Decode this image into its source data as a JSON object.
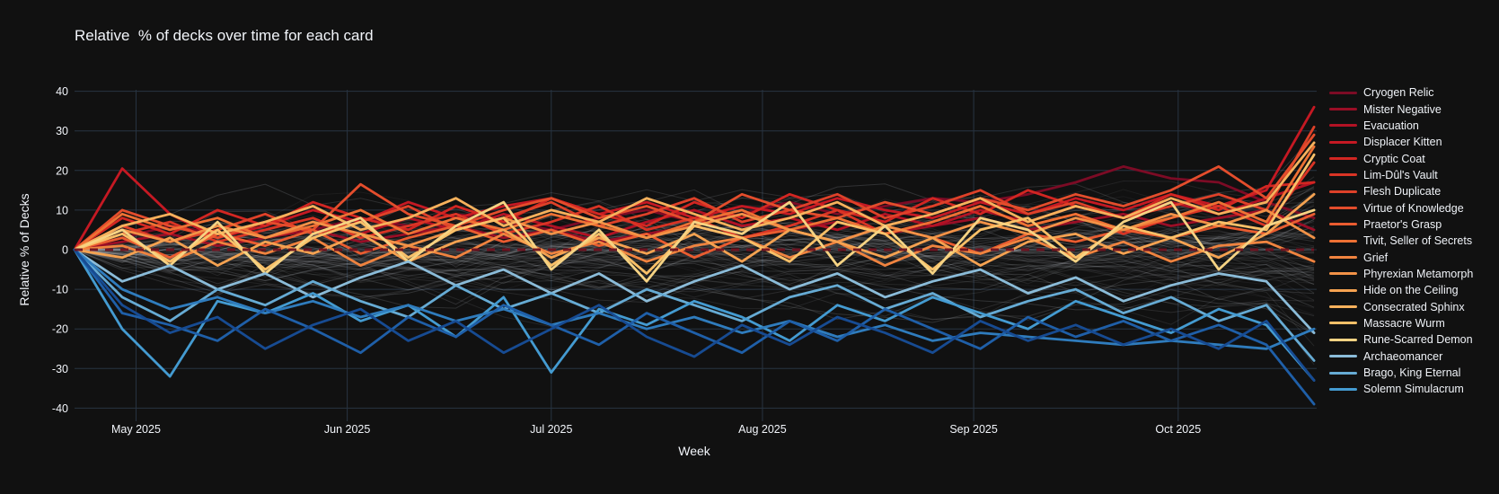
{
  "title": "Relative  % of decks over time for each card",
  "colors": {
    "background": "#111111",
    "grid": "#283442",
    "text": "#f2f5fa",
    "background_lines": "#c9ced6",
    "baseline_dash": "#6f1220"
  },
  "chart_data": {
    "type": "line",
    "title": "Relative  % of decks over time for each card",
    "xlabel": "Week",
    "ylabel": "Relative % of Decks",
    "ylim": [
      -40,
      40
    ],
    "y_ticks": [
      40,
      30,
      20,
      10,
      0,
      -10,
      -20,
      -30,
      -40
    ],
    "x_ticks": [
      {
        "label": "May 2025",
        "week_index": 1.29
      },
      {
        "label": "Jun 2025",
        "week_index": 5.72
      },
      {
        "label": "Jul 2025",
        "week_index": 10.0
      },
      {
        "label": "Aug 2025",
        "week_index": 14.43
      },
      {
        "label": "Sep 2025",
        "week_index": 18.86
      },
      {
        "label": "Oct 2025",
        "week_index": 23.15
      }
    ],
    "weeks_count": 27,
    "grid": true,
    "legend_position": "right",
    "baseline": {
      "value": 0,
      "style": "dashed",
      "color": "#6f1220"
    },
    "background_lines": {
      "count": 88,
      "color": "#c9ced6",
      "meaning": "unhighlighted cards"
    },
    "series": [
      {
        "name": "Cryogen Relic",
        "color": "#7c0b25",
        "in_legend": true,
        "values": [
          0,
          3,
          6,
          4,
          7,
          5,
          8,
          6,
          9,
          7,
          5,
          8,
          10,
          7,
          9,
          12,
          9,
          11,
          13,
          12,
          14,
          17,
          21,
          18,
          17,
          12,
          8
        ]
      },
      {
        "name": "Mister Negative",
        "color": "#9a0e26",
        "in_legend": true,
        "values": [
          0,
          2,
          4,
          1,
          3,
          5,
          2,
          4,
          6,
          3,
          5,
          2,
          4,
          6,
          3,
          5,
          7,
          4,
          6,
          8,
          5,
          7,
          9,
          6,
          8,
          10,
          5
        ]
      },
      {
        "name": "Evacuation",
        "color": "#b21224",
        "in_legend": true,
        "values": [
          0,
          5,
          2,
          6,
          3,
          7,
          4,
          8,
          5,
          9,
          6,
          3,
          7,
          10,
          6,
          8,
          5,
          9,
          6,
          10,
          7,
          11,
          8,
          12,
          9,
          13,
          17
        ]
      },
      {
        "name": "Displacer Kitten",
        "color": "#c51923",
        "in_legend": true,
        "values": [
          0,
          20.5,
          9,
          3,
          6,
          10,
          7,
          12,
          8,
          11,
          13,
          9,
          12,
          8,
          11,
          9,
          13,
          10,
          8,
          12,
          9,
          13,
          10,
          14,
          11,
          15,
          36
        ]
      },
      {
        "name": "Cryptic Coat",
        "color": "#d22622",
        "in_legend": true,
        "values": [
          0,
          8,
          4,
          10,
          6,
          12,
          8,
          5,
          11,
          7,
          13,
          9,
          6,
          12,
          8,
          14,
          10,
          7,
          13,
          9,
          15,
          11,
          8,
          14,
          10,
          16,
          17
        ]
      },
      {
        "name": "Lim-Dûl's Vault",
        "color": "#d93425",
        "in_legend": true,
        "values": [
          0,
          4,
          7,
          2,
          5,
          8,
          3,
          6,
          9,
          4,
          7,
          11,
          5,
          8,
          3,
          6,
          10,
          4,
          7,
          11,
          6,
          9,
          4,
          8,
          11,
          6,
          22
        ]
      },
      {
        "name": "Flesh Duplicate",
        "color": "#de4129",
        "in_legend": true,
        "values": [
          0,
          6,
          2,
          5,
          9,
          4,
          7,
          11,
          5,
          8,
          12,
          6,
          9,
          13,
          7,
          10,
          14,
          8,
          11,
          15,
          9,
          12,
          8,
          11,
          14,
          10,
          31
        ]
      },
      {
        "name": "Virtue of Knowledge",
        "color": "#e44d2c",
        "in_legend": true,
        "values": [
          0,
          10,
          6,
          3,
          7,
          5,
          16.5,
          9,
          6,
          10,
          13,
          8,
          11,
          7,
          14,
          10,
          8,
          12,
          9,
          13,
          10,
          14,
          11,
          15,
          21,
          13,
          29
        ]
      },
      {
        "name": "Praetor's Grasp",
        "color": "#ea5c30",
        "in_legend": true,
        "values": [
          0,
          3,
          -2,
          4,
          1,
          5,
          -1,
          3,
          6,
          2,
          5,
          1,
          4,
          -2,
          3,
          5,
          2,
          6,
          3,
          -1,
          4,
          2,
          5,
          3,
          6,
          4,
          9
        ]
      },
      {
        "name": "Tivit, Seller of Secrets",
        "color": "#ee7134",
        "in_legend": true,
        "values": [
          0,
          9,
          5,
          8,
          3,
          6,
          10,
          4,
          8,
          5,
          9,
          6,
          3,
          7,
          10,
          5,
          8,
          4,
          7,
          11,
          6,
          9,
          5,
          8,
          12,
          7,
          26
        ]
      },
      {
        "name": "Grief",
        "color": "#f0833f",
        "in_legend": true,
        "values": [
          0,
          1,
          -3,
          2,
          -1,
          3,
          -4,
          1,
          -2,
          4,
          -1,
          2,
          -3,
          1,
          3,
          -2,
          2,
          -4,
          1,
          -1,
          3,
          -2,
          2,
          -3,
          1,
          2,
          -3
        ]
      },
      {
        "name": "Phyrexian Metamorph",
        "color": "#f29247",
        "in_legend": true,
        "values": [
          0,
          5,
          2,
          6,
          3,
          7,
          4,
          1,
          5,
          8,
          4,
          7,
          3,
          6,
          9,
          5,
          2,
          6,
          3,
          7,
          4,
          8,
          5,
          9,
          6,
          10,
          3
        ]
      },
      {
        "name": "Hide on the Ceiling",
        "color": "#f5a251",
        "in_legend": true,
        "values": [
          0,
          -2,
          3,
          -4,
          2,
          -1,
          4,
          -3,
          2,
          5,
          -2,
          3,
          -1,
          4,
          -3,
          5,
          2,
          -2,
          3,
          -4,
          2,
          4,
          -1,
          3,
          -2,
          4,
          14
        ]
      },
      {
        "name": "Consecrated Sphinx",
        "color": "#f7b15c",
        "in_legend": true,
        "values": [
          0,
          6,
          9,
          4,
          7,
          11,
          5,
          8,
          13,
          6,
          10,
          7,
          13,
          9,
          5,
          8,
          12,
          6,
          9,
          13,
          7,
          11,
          8,
          13,
          9,
          12,
          27
        ]
      },
      {
        "name": "Massacre Wurm",
        "color": "#f9c068",
        "in_legend": true,
        "values": [
          0,
          4,
          -3,
          5,
          -5,
          3,
          7,
          -2,
          5,
          8,
          -4,
          4,
          -6,
          6,
          3,
          -3,
          7,
          4,
          -5,
          5,
          8,
          -2,
          6,
          3,
          7,
          5,
          24
        ]
      },
      {
        "name": "Rune-Scarred Demon",
        "color": "#f6d383",
        "in_legend": true,
        "values": [
          0,
          5,
          -4,
          7,
          -6,
          4,
          8,
          -3,
          6,
          12,
          -5,
          5,
          -8,
          7,
          4,
          12,
          -4,
          6,
          -6,
          8,
          5,
          -3,
          7,
          12,
          -5,
          6,
          10
        ]
      },
      {
        "name": "Archaeomancer",
        "color": "#8bbcd9",
        "in_legend": true,
        "values": [
          0,
          -8,
          -4,
          -10,
          -6,
          -12,
          -7,
          -3,
          -9,
          -5,
          -11,
          -6,
          -13,
          -8,
          -4,
          -10,
          -6,
          -12,
          -8,
          -5,
          -11,
          -7,
          -13,
          -9,
          -6,
          -8,
          -21
        ]
      },
      {
        "name": "Brago, King Eternal",
        "color": "#66abd4",
        "in_legend": true,
        "values": [
          0,
          -12,
          -18,
          -10,
          -14,
          -8,
          -13,
          -17,
          -9,
          -15,
          -11,
          -16,
          -10,
          -14,
          -18,
          -12,
          -9,
          -15,
          -11,
          -17,
          -13,
          -10,
          -16,
          -12,
          -18,
          -14,
          -28
        ]
      },
      {
        "name": "Solemn Simulacrum",
        "color": "#449bd1",
        "in_legend": true,
        "values": [
          0,
          -20,
          -32,
          -13,
          -16,
          -11,
          -18,
          -14,
          -22,
          -12,
          -31,
          -15,
          -19,
          -13,
          -17,
          -23,
          -14,
          -18,
          -12,
          -16,
          -20,
          -13,
          -17,
          -21,
          -15,
          -19,
          -33
        ]
      },
      {
        "name": "",
        "color": "#2f7cbd",
        "in_legend": false,
        "values": [
          0,
          -10,
          -15,
          -12,
          -16,
          -13,
          -17,
          -14,
          -18,
          -15,
          -19,
          -16,
          -20,
          -17,
          -21,
          -18,
          -22,
          -19,
          -23,
          -21,
          -22,
          -23,
          -24,
          -23,
          -24,
          -25,
          -20
        ]
      },
      {
        "name": "",
        "color": "#1f5fa8",
        "in_legend": false,
        "values": [
          0,
          -16,
          -19,
          -23,
          -15,
          -20,
          -26,
          -17,
          -22,
          -14,
          -19,
          -24,
          -16,
          -21,
          -26,
          -18,
          -23,
          -15,
          -20,
          -25,
          -17,
          -22,
          -18,
          -23,
          -19,
          -24,
          -39
        ]
      },
      {
        "name": "",
        "color": "#174b92",
        "in_legend": false,
        "values": [
          0,
          -14,
          -21,
          -17,
          -25,
          -19,
          -15,
          -23,
          -18,
          -26,
          -20,
          -14,
          -22,
          -27,
          -19,
          -24,
          -17,
          -21,
          -26,
          -18,
          -23,
          -19,
          -24,
          -20,
          -25,
          -18,
          -33
        ]
      }
    ]
  },
  "legend": {
    "items": [
      {
        "label": "Cryogen Relic",
        "color": "#7c0b25"
      },
      {
        "label": "Mister Negative",
        "color": "#9a0e26"
      },
      {
        "label": "Evacuation",
        "color": "#b21224"
      },
      {
        "label": "Displacer Kitten",
        "color": "#c51923"
      },
      {
        "label": "Cryptic Coat",
        "color": "#d22622"
      },
      {
        "label": "Lim-Dûl's Vault",
        "color": "#d93425"
      },
      {
        "label": "Flesh Duplicate",
        "color": "#de4129"
      },
      {
        "label": "Virtue of Knowledge",
        "color": "#e44d2c"
      },
      {
        "label": "Praetor's Grasp",
        "color": "#ea5c30"
      },
      {
        "label": "Tivit, Seller of Secrets",
        "color": "#ee7134"
      },
      {
        "label": "Grief",
        "color": "#f0833f"
      },
      {
        "label": "Phyrexian Metamorph",
        "color": "#f29247"
      },
      {
        "label": "Hide on the Ceiling",
        "color": "#f5a251"
      },
      {
        "label": "Consecrated Sphinx",
        "color": "#f7b15c"
      },
      {
        "label": "Massacre Wurm",
        "color": "#f9c068"
      },
      {
        "label": "Rune-Scarred Demon",
        "color": "#f6d383"
      },
      {
        "label": "Archaeomancer",
        "color": "#8bbcd9"
      },
      {
        "label": "Brago, King Eternal",
        "color": "#66abd4"
      },
      {
        "label": "Solemn Simulacrum",
        "color": "#449bd1"
      }
    ]
  }
}
